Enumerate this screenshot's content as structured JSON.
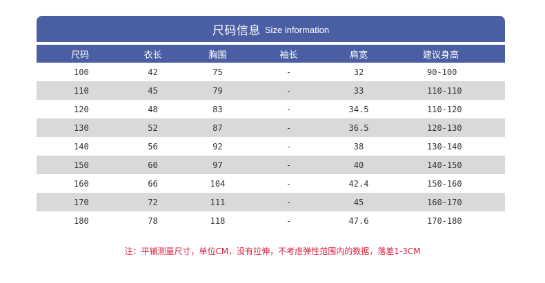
{
  "title": {
    "cn": "尺码信息",
    "en": "Size information"
  },
  "headers": [
    "尺码",
    "衣长",
    "胸围",
    "袖长",
    "肩宽",
    "建议身高"
  ],
  "rows": [
    [
      "100",
      "42",
      "75",
      "-",
      "32",
      "90-100"
    ],
    [
      "110",
      "45",
      "79",
      "-",
      "33",
      "110-110"
    ],
    [
      "120",
      "48",
      "83",
      "-",
      "34.5",
      "110-120"
    ],
    [
      "130",
      "52",
      "87",
      "-",
      "36.5",
      "120-130"
    ],
    [
      "140",
      "56",
      "92",
      "-",
      "38",
      "130-140"
    ],
    [
      "150",
      "60",
      "97",
      "-",
      "40",
      "140-150"
    ],
    [
      "160",
      "66",
      "104",
      "-",
      "42.4",
      "150-160"
    ],
    [
      "170",
      "72",
      "111",
      "-",
      "45",
      "160-170"
    ],
    [
      "180",
      "78",
      "118",
      "-",
      "47.6",
      "170-180"
    ]
  ],
  "note": "注：平铺测量尺寸，单位CM，没有拉伸，不考虑弹性范围内的数据，落差1-3CM",
  "colors": {
    "header_bg": "#4a5ea3",
    "row_shade": "#d9d9d9",
    "note_text": "#d6203f"
  }
}
